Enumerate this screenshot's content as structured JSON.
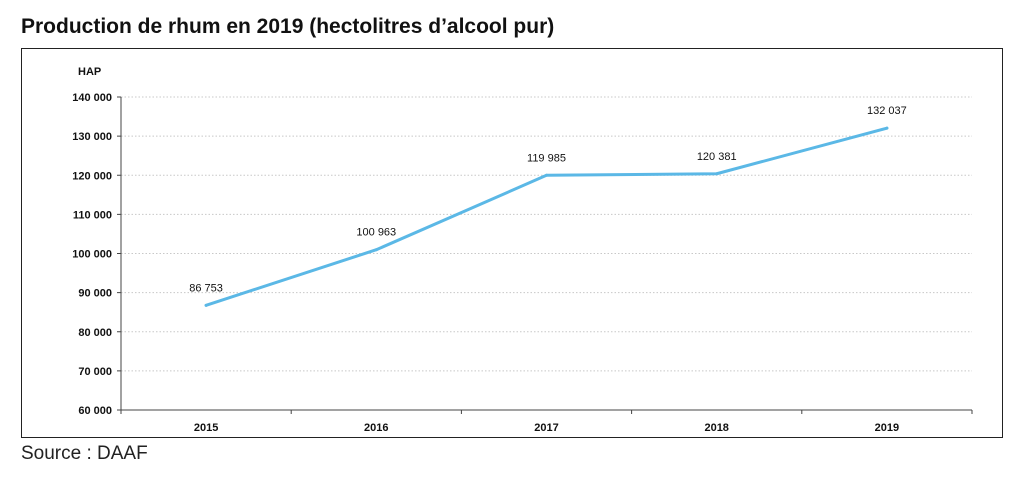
{
  "title": "Production de rhum en 2019 (hectolitres d’alcool pur)",
  "source": "Source : DAAF",
  "chart_data": {
    "type": "line",
    "ylabel": "HAP",
    "categories": [
      "2015",
      "2016",
      "2017",
      "2018",
      "2019"
    ],
    "values": [
      86753,
      100963,
      119985,
      120381,
      132037
    ],
    "data_labels": [
      "86 753",
      "100 963",
      "119 985",
      "120 381",
      "132 037"
    ],
    "ylim": [
      60000,
      140000
    ],
    "yticks": [
      60000,
      70000,
      80000,
      90000,
      100000,
      110000,
      120000,
      130000,
      140000
    ],
    "ytick_labels": [
      "60 000",
      "70 000",
      "80 000",
      "90 000",
      "100 000",
      "110 000",
      "120 000",
      "130 000",
      "140 000"
    ],
    "grid": true,
    "line_color": "#5bb8e6",
    "grid_color": "#c8c8c8"
  }
}
